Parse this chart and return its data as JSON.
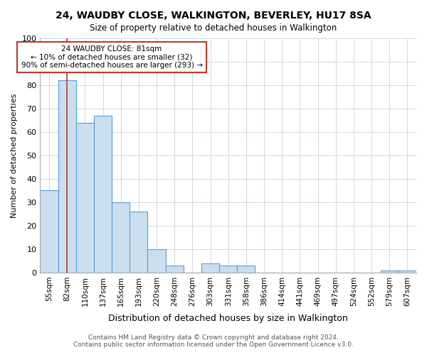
{
  "title1": "24, WAUDBY CLOSE, WALKINGTON, BEVERLEY, HU17 8SA",
  "title2": "Size of property relative to detached houses in Walkington",
  "xlabel": "Distribution of detached houses by size in Walkington",
  "ylabel": "Number of detached properties",
  "categories": [
    "55sqm",
    "82sqm",
    "110sqm",
    "137sqm",
    "165sqm",
    "193sqm",
    "220sqm",
    "248sqm",
    "276sqm",
    "303sqm",
    "331sqm",
    "358sqm",
    "386sqm",
    "414sqm",
    "441sqm",
    "469sqm",
    "497sqm",
    "524sqm",
    "552sqm",
    "579sqm",
    "607sqm"
  ],
  "values": [
    35,
    82,
    64,
    67,
    30,
    26,
    10,
    3,
    0,
    4,
    3,
    3,
    0,
    0,
    0,
    0,
    0,
    0,
    0,
    1,
    1
  ],
  "bar_color": "#c9dff0",
  "bar_edge_color": "#5b9bd5",
  "ylim": [
    0,
    100
  ],
  "yticks": [
    0,
    10,
    20,
    30,
    40,
    50,
    60,
    70,
    80,
    90,
    100
  ],
  "red_line_x": 1.0,
  "annotation_title": "24 WAUDBY CLOSE: 81sqm",
  "annotation_line1": "← 10% of detached houses are smaller (32)",
  "annotation_line2": "90% of semi-detached houses are larger (293) →",
  "footer1": "Contains HM Land Registry data © Crown copyright and database right 2024.",
  "footer2": "Contains public sector information licensed under the Open Government Licence v3.0.",
  "background_color": "#ffffff"
}
